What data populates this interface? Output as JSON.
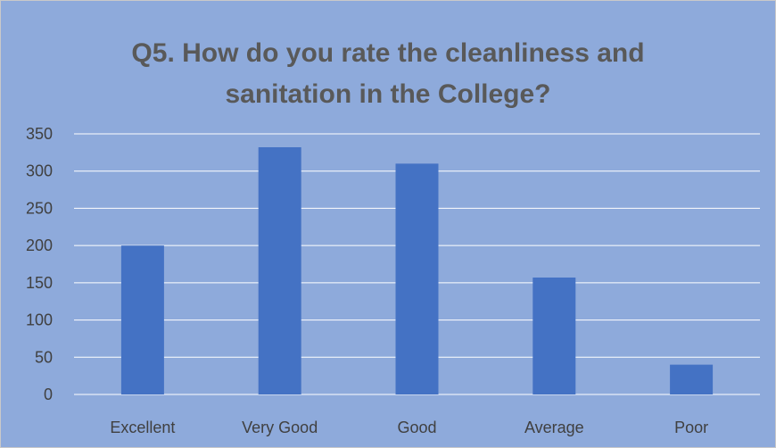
{
  "chart_data": {
    "type": "bar",
    "title_lines": [
      "Q5. How do you rate the cleanliness and",
      "sanitation in the College?"
    ],
    "categories": [
      "Excellent",
      "Very Good",
      "Good",
      "Average",
      "Poor"
    ],
    "values": [
      200,
      332,
      310,
      157,
      40
    ],
    "xlabel": "",
    "ylabel": "",
    "ylim": [
      0,
      350
    ],
    "yticks": [
      "0",
      "50",
      "100",
      "150",
      "200",
      "250",
      "300",
      "350"
    ],
    "grid": true,
    "legend": "none",
    "colors": {
      "bar": "#4472c4",
      "background": "#8eaadb",
      "gridline": "#ffffff",
      "title": "#595959",
      "text": "#404040"
    }
  }
}
